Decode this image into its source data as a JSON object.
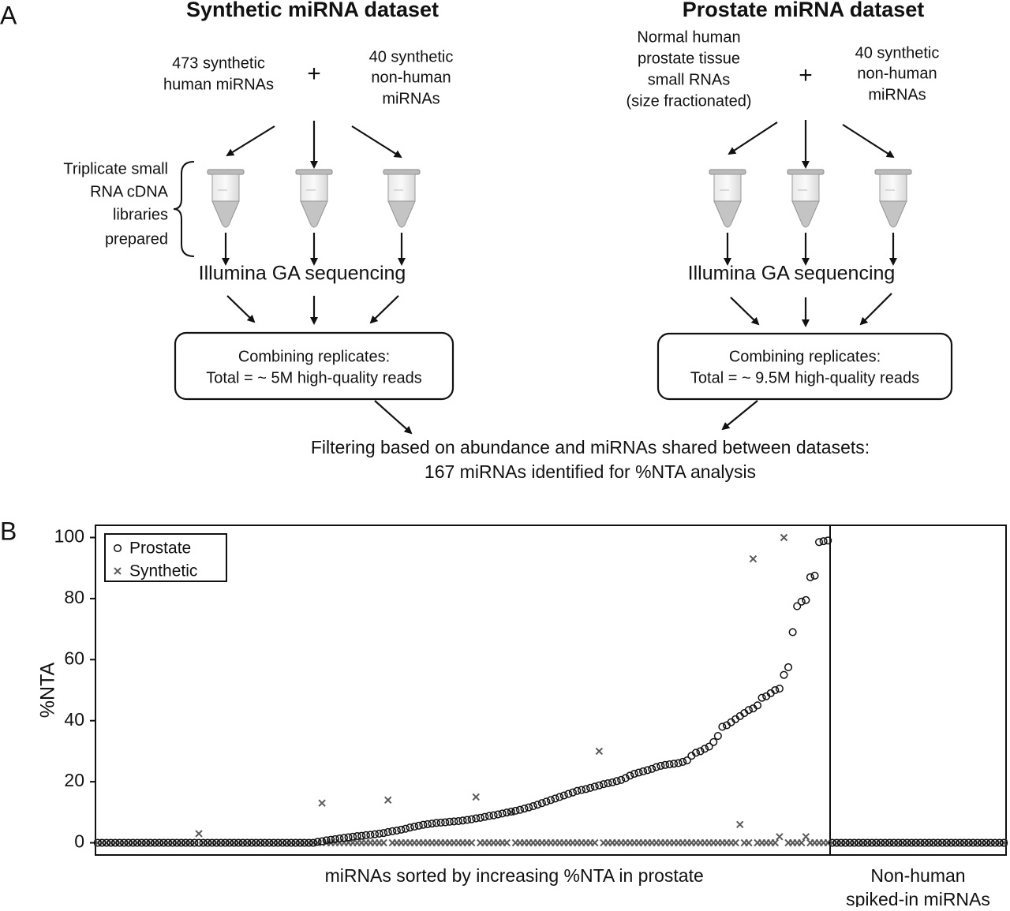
{
  "diagram": {
    "label": "A",
    "datasets": [
      {
        "title": "Synthetic miRNA dataset",
        "input_left": [
          "473 synthetic",
          "human miRNAs"
        ],
        "plus": "+",
        "input_right": [
          "40 synthetic",
          "non-human",
          "miRNAs"
        ],
        "sequencing": "Illumina GA sequencing",
        "combine": [
          "Combining replicates:",
          "Total = ~ 5M high-quality reads"
        ]
      },
      {
        "title": "Prostate miRNA dataset",
        "input_left": [
          "Normal human",
          "prostate tissue",
          "small RNAs",
          "(size fractionated)"
        ],
        "plus": "+",
        "input_right": [
          "40 synthetic",
          "non-human",
          "miRNAs"
        ],
        "sequencing": "Illumina GA sequencing",
        "combine": [
          "Combining replicates:",
          "Total = ~ 9.5M high-quality reads"
        ]
      }
    ],
    "triplicate": [
      "Triplicate small",
      "RNA cDNA",
      "libraries",
      "prepared"
    ],
    "filter": [
      "Filtering based on abundance and miRNAs shared between datasets:",
      "167  miRNAs  identified  for  %NTA  analysis"
    ]
  },
  "chart_data": {
    "type": "scatter",
    "label": "B",
    "ylabel": "%NTA",
    "ylim": [
      -4,
      104
    ],
    "yticks": [
      0,
      20,
      40,
      60,
      80,
      100
    ],
    "legend": "upper left",
    "series": [
      {
        "name": "Prostate",
        "marker": "circle",
        "color": "#111111"
      },
      {
        "name": "Synthetic",
        "marker": "x",
        "color": "#5a5a5a"
      }
    ],
    "panels": [
      {
        "xlabel": [
          "miRNAs sorted by increasing %NTA in prostate"
        ],
        "series": [
          {
            "values": [
              0,
              0,
              0,
              0,
              0,
              0,
              0,
              0,
              0,
              0,
              0,
              0,
              0,
              0,
              0,
              0,
              0,
              0,
              0,
              0,
              0,
              0,
              0,
              0,
              0,
              0,
              0,
              0,
              0,
              0,
              0,
              0,
              0,
              0,
              0,
              0,
              0,
              0,
              0,
              0,
              0,
              0,
              0,
              0,
              0,
              0,
              0,
              0,
              0,
              0,
              0.3,
              0.5,
              0.8,
              1,
              1.2,
              1.4,
              1.6,
              1.8,
              2,
              2.2,
              2.3,
              2.5,
              2.6,
              2.8,
              3,
              3.2,
              3.5,
              3.8,
              4,
              4.3,
              4.6,
              5,
              5.3,
              5.6,
              5.9,
              6.1,
              6.3,
              6.5,
              6.6,
              6.7,
              6.9,
              7,
              7.1,
              7.3,
              7.5,
              7.7,
              8,
              8.2,
              8.5,
              8.8,
              9,
              9.3,
              9.6,
              9.9,
              10.2,
              10.5,
              10.8,
              11.2,
              11.6,
              12,
              12.5,
              13,
              13.5,
              14,
              14.5,
              15,
              15.5,
              16,
              16.5,
              17,
              17.3,
              17.6,
              18,
              18.4,
              18.8,
              19.2,
              19.5,
              19.8,
              20.2,
              20.6,
              21.2,
              22,
              22.6,
              23,
              23.4,
              23.8,
              24.2,
              24.8,
              25.2,
              25.5,
              25.7,
              25.9,
              26.1,
              26.5,
              27,
              28.5,
              29.5,
              30,
              30.8,
              31.5,
              33,
              35,
              38,
              38.5,
              39.5,
              40.5,
              41.5,
              42.5,
              43.5,
              44,
              45,
              47.5,
              48,
              49,
              50,
              50.5,
              55,
              57.5,
              69,
              77.5,
              79,
              79.5,
              87,
              87.5,
              98.5,
              98.8,
              99
            ]
          },
          {
            "values": [
              0,
              0,
              0,
              0,
              0,
              0,
              0,
              0,
              0,
              0,
              0,
              0,
              0,
              0,
              0,
              0,
              0,
              0,
              0,
              0,
              0,
              0,
              0,
              3,
              0,
              0,
              0,
              0,
              0,
              0,
              0,
              0,
              0,
              0,
              0,
              0,
              0,
              0,
              0,
              0,
              0,
              0,
              0,
              0,
              0,
              0,
              0,
              0,
              0,
              0,
              0,
              13,
              0,
              0,
              0,
              0,
              0,
              0,
              0,
              0,
              0,
              0,
              0,
              0,
              0,
              0,
              14,
              0,
              0,
              0,
              0,
              0,
              0,
              0,
              0,
              0,
              0,
              0,
              0,
              0,
              0,
              0,
              0,
              0,
              0,
              0,
              15,
              0,
              0,
              0,
              0,
              0,
              0,
              0,
              10,
              0,
              0,
              0,
              0,
              0,
              0,
              0,
              0,
              0,
              0,
              0,
              0,
              0,
              0,
              0,
              0,
              0,
              0,
              0,
              30,
              0,
              0,
              0,
              0,
              0,
              0,
              0,
              0,
              0,
              0,
              0,
              0,
              0,
              0,
              0,
              0,
              0,
              0,
              0,
              0,
              0,
              0,
              0,
              0,
              0,
              0,
              0,
              0,
              0,
              0,
              0,
              6,
              0,
              0,
              93,
              0,
              0,
              0,
              0,
              0,
              2,
              100,
              0,
              0,
              0,
              0,
              2,
              0,
              0,
              0,
              0,
              0
            ]
          }
        ]
      },
      {
        "xlabel": [
          "Non-human",
          "spiked-in miRNAs"
        ],
        "series": [
          {
            "values": [
              0,
              0,
              0,
              0,
              0,
              0,
              0,
              0,
              0,
              0,
              0,
              0,
              0,
              0,
              0,
              0,
              0,
              0,
              0,
              0,
              0,
              0,
              0,
              0,
              0,
              0,
              0,
              0,
              0,
              0,
              0,
              0,
              0,
              0,
              0,
              0,
              0,
              0,
              0,
              0
            ]
          },
          {
            "values": [
              0,
              0,
              0,
              0,
              0,
              0,
              0,
              0,
              0,
              0,
              0,
              0,
              0,
              0,
              0,
              0,
              0,
              0,
              0,
              0,
              0,
              0,
              0,
              0,
              0,
              0,
              0,
              0,
              0,
              0,
              0,
              0,
              0,
              0,
              0,
              0,
              0,
              0,
              0,
              0
            ]
          }
        ]
      }
    ]
  }
}
